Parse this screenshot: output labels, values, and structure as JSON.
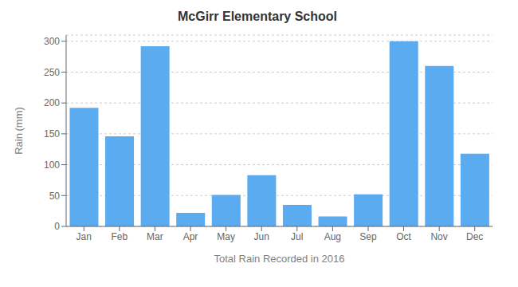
{
  "chart_data": {
    "type": "bar",
    "title": "McGirr Elementary School",
    "xlabel": "Total Rain Recorded in 2016",
    "ylabel": "Rain (mm)",
    "categories": [
      "Jan",
      "Feb",
      "Mar",
      "Apr",
      "May",
      "Jun",
      "Jul",
      "Aug",
      "Sep",
      "Oct",
      "Nov",
      "Dec"
    ],
    "values": [
      192,
      146,
      292,
      22,
      51,
      83,
      35,
      16,
      52,
      300,
      260,
      118
    ],
    "color": "#5aabf0",
    "ylim": [
      0,
      310
    ],
    "yticks": [
      0,
      50,
      100,
      150,
      200,
      250,
      300
    ],
    "grid": true
  }
}
